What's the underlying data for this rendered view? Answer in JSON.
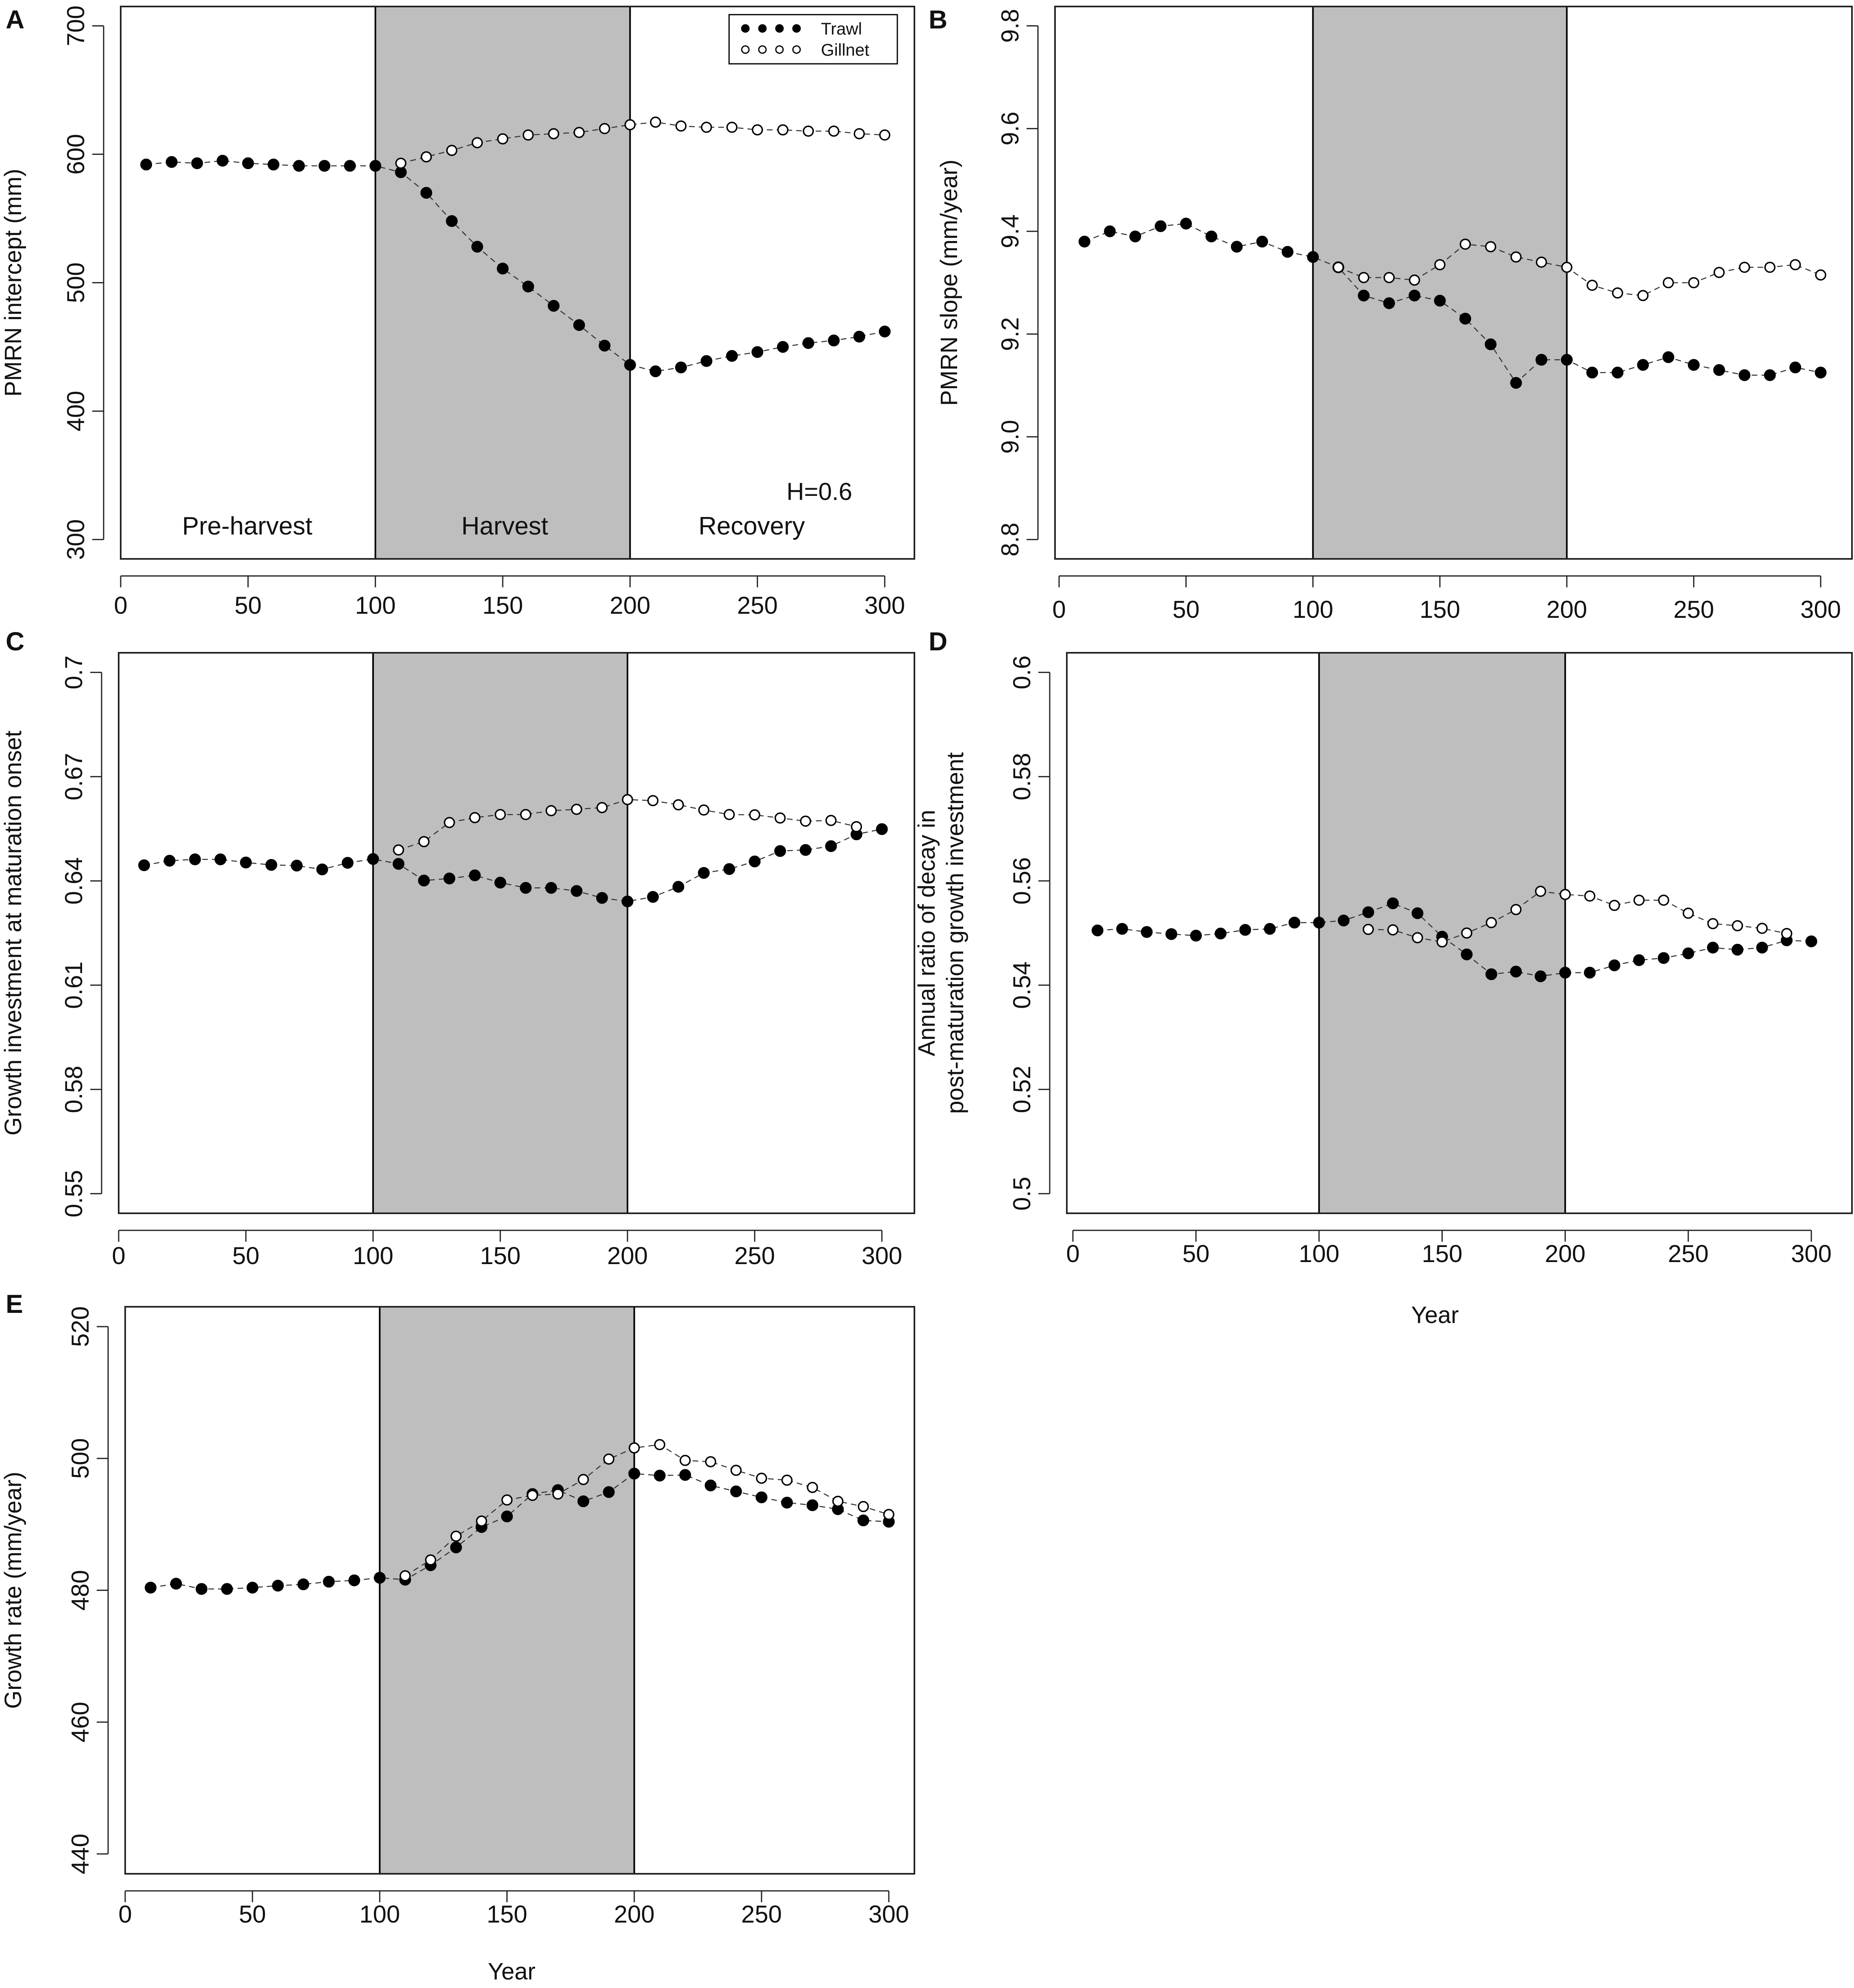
{
  "figure": {
    "shared_xlabel": "Year"
  },
  "legend": {
    "trawl_label": "Trawl",
    "gillnet_label": "Gillnet"
  },
  "colors": {
    "harvest_shade": "#bebebe",
    "marker": "#000000",
    "axis": "#222222"
  },
  "chart_data": [
    {
      "id": "A",
      "panel_label": "A",
      "type": "scatter",
      "title": "",
      "xlabel": "",
      "ylabel": "PMRN intercept (mm)",
      "xlim": [
        0,
        300
      ],
      "ylim": [
        300,
        700
      ],
      "xticks": [
        0,
        50,
        100,
        150,
        200,
        250,
        300
      ],
      "xtick_labels": [
        "0",
        "50",
        "100",
        "150",
        "200",
        "250",
        "300"
      ],
      "yticks": [
        300,
        400,
        500,
        600,
        700
      ],
      "ytick_labels": [
        "300",
        "400",
        "500",
        "600",
        "700"
      ],
      "harvest_period": [
        100,
        200
      ],
      "region_labels": [
        "Pre-harvest",
        "Harvest",
        "Recovery"
      ],
      "annotation": "H=0.6",
      "show_legend": true,
      "series": [
        {
          "name": "Trawl",
          "marker": "filled",
          "x": [
            10,
            20,
            30,
            40,
            50,
            60,
            70,
            80,
            90,
            100,
            110,
            120,
            130,
            140,
            150,
            160,
            170,
            180,
            190,
            200,
            210,
            220,
            230,
            240,
            250,
            260,
            270,
            280,
            290,
            300
          ],
          "y": [
            592,
            594,
            593,
            595,
            593,
            592,
            591,
            591,
            591,
            591,
            586,
            570,
            548,
            528,
            511,
            497,
            482,
            467,
            451,
            436,
            431,
            434,
            439,
            443,
            446,
            450,
            453,
            455,
            458,
            462
          ]
        },
        {
          "name": "Gillnet",
          "marker": "open",
          "x": [
            110,
            120,
            130,
            140,
            150,
            160,
            170,
            180,
            190,
            200,
            210,
            220,
            230,
            240,
            250,
            260,
            270,
            280,
            290,
            300
          ],
          "y": [
            593,
            598,
            603,
            609,
            612,
            615,
            616,
            617,
            620,
            623,
            625,
            622,
            621,
            621,
            619,
            619,
            618,
            618,
            616,
            615
          ]
        }
      ]
    },
    {
      "id": "B",
      "panel_label": "B",
      "type": "scatter",
      "title": "",
      "xlabel": "",
      "ylabel": "PMRN slope (mm/year)",
      "xlim": [
        0,
        300
      ],
      "ylim": [
        8.8,
        9.8
      ],
      "xticks": [
        0,
        50,
        100,
        150,
        200,
        250,
        300
      ],
      "xtick_labels": [
        "0",
        "50",
        "100",
        "150",
        "200",
        "250",
        "300"
      ],
      "yticks": [
        8.8,
        9.0,
        9.2,
        9.4,
        9.6,
        9.8
      ],
      "ytick_labels": [
        "8.8",
        "9.0",
        "9.2",
        "9.4",
        "9.6",
        "9.8"
      ],
      "harvest_period": [
        100,
        200
      ],
      "region_labels": [],
      "annotation": "",
      "show_legend": false,
      "series": [
        {
          "name": "Trawl",
          "marker": "filled",
          "x": [
            10,
            20,
            30,
            40,
            50,
            60,
            70,
            80,
            90,
            100,
            110,
            120,
            130,
            140,
            150,
            160,
            170,
            180,
            190,
            200,
            210,
            220,
            230,
            240,
            250,
            260,
            270,
            280,
            290,
            300
          ],
          "y": [
            9.38,
            9.4,
            9.39,
            9.41,
            9.415,
            9.39,
            9.37,
            9.38,
            9.36,
            9.35,
            9.33,
            9.275,
            9.26,
            9.275,
            9.265,
            9.23,
            9.18,
            9.105,
            9.15,
            9.15,
            9.125,
            9.125,
            9.14,
            9.155,
            9.14,
            9.13,
            9.12,
            9.12,
            9.135,
            9.125
          ]
        },
        {
          "name": "Gillnet",
          "marker": "open",
          "x": [
            110,
            120,
            130,
            140,
            150,
            160,
            170,
            180,
            190,
            200,
            210,
            220,
            230,
            240,
            250,
            260,
            270,
            280,
            290,
            300
          ],
          "y": [
            9.33,
            9.31,
            9.31,
            9.305,
            9.335,
            9.375,
            9.37,
            9.35,
            9.34,
            9.33,
            9.295,
            9.28,
            9.275,
            9.3,
            9.3,
            9.32,
            9.33,
            9.33,
            9.335,
            9.315
          ]
        }
      ]
    },
    {
      "id": "C",
      "panel_label": "C",
      "type": "scatter",
      "title": "",
      "xlabel": "",
      "ylabel": "Growth investment at maturation onset",
      "xlim": [
        0,
        300
      ],
      "ylim": [
        0.55,
        0.7
      ],
      "xticks": [
        0,
        50,
        100,
        150,
        200,
        250,
        300
      ],
      "xtick_labels": [
        "0",
        "50",
        "100",
        "150",
        "200",
        "250",
        "300"
      ],
      "yticks": [
        0.55,
        0.58,
        0.61,
        0.64,
        0.67,
        0.7
      ],
      "ytick_labels": [
        "0.55",
        "0.58",
        "0.61",
        "0.64",
        "0.67",
        "0.7"
      ],
      "harvest_period": [
        100,
        200
      ],
      "region_labels": [],
      "annotation": "",
      "show_legend": false,
      "series": [
        {
          "name": "Trawl",
          "marker": "filled",
          "x": [
            10,
            20,
            30,
            40,
            50,
            60,
            70,
            80,
            90,
            100,
            110,
            120,
            130,
            140,
            150,
            160,
            170,
            180,
            190,
            200,
            210,
            220,
            230,
            240,
            250,
            260,
            270,
            280,
            290,
            300
          ],
          "y": [
            0.6445,
            0.6458,
            0.6462,
            0.6462,
            0.6453,
            0.6446,
            0.6444,
            0.6433,
            0.6452,
            0.6463,
            0.6449,
            0.6401,
            0.6407,
            0.6416,
            0.6395,
            0.638,
            0.638,
            0.6371,
            0.6351,
            0.6341,
            0.6354,
            0.6383,
            0.6423,
            0.6434,
            0.6456,
            0.6486,
            0.6489,
            0.65,
            0.6534,
            0.6549
          ]
        },
        {
          "name": "Gillnet",
          "marker": "open",
          "x": [
            110,
            120,
            130,
            140,
            150,
            160,
            170,
            180,
            190,
            200,
            210,
            220,
            230,
            240,
            250,
            260,
            270,
            280,
            290
          ],
          "y": [
            0.6489,
            0.6513,
            0.6568,
            0.6582,
            0.6591,
            0.6591,
            0.6602,
            0.6606,
            0.6611,
            0.6634,
            0.6631,
            0.6619,
            0.6604,
            0.6591,
            0.659,
            0.6581,
            0.6572,
            0.6574,
            0.6556
          ]
        }
      ]
    },
    {
      "id": "D",
      "panel_label": "D",
      "type": "scatter",
      "title": "",
      "xlabel": "Year",
      "ylabel_lines": [
        "Annual ratio of decay in",
        "post-maturation growth investment"
      ],
      "xlim": [
        0,
        300
      ],
      "ylim": [
        0.5,
        0.6
      ],
      "xticks": [
        0,
        50,
        100,
        150,
        200,
        250,
        300
      ],
      "xtick_labels": [
        "0",
        "50",
        "100",
        "150",
        "200",
        "250",
        "300"
      ],
      "yticks": [
        0.5,
        0.52,
        0.54,
        0.56,
        0.58,
        0.6
      ],
      "ytick_labels": [
        "0.5",
        "0.52",
        "0.54",
        "0.56",
        "0.58",
        "0.6"
      ],
      "harvest_period": [
        100,
        200
      ],
      "region_labels": [],
      "annotation": "",
      "show_legend": false,
      "series": [
        {
          "name": "Trawl",
          "marker": "filled",
          "x": [
            10,
            20,
            30,
            40,
            50,
            60,
            70,
            80,
            90,
            100,
            110,
            120,
            130,
            140,
            150,
            160,
            170,
            180,
            190,
            200,
            210,
            220,
            230,
            240,
            250,
            260,
            270,
            280,
            290,
            300
          ],
          "y": [
            0.5505,
            0.5508,
            0.5502,
            0.5498,
            0.5495,
            0.5499,
            0.5506,
            0.5508,
            0.552,
            0.552,
            0.5524,
            0.554,
            0.5557,
            0.5538,
            0.5493,
            0.5459,
            0.5421,
            0.5426,
            0.5417,
            0.5424,
            0.5424,
            0.5438,
            0.5448,
            0.5452,
            0.5461,
            0.5472,
            0.5468,
            0.5472,
            0.5486,
            0.5484
          ]
        },
        {
          "name": "Gillnet",
          "marker": "open",
          "x": [
            120,
            130,
            140,
            150,
            160,
            170,
            180,
            190,
            200,
            210,
            220,
            230,
            240,
            250,
            260,
            270,
            280,
            290
          ],
          "y": [
            0.5507,
            0.5506,
            0.5491,
            0.5483,
            0.55,
            0.552,
            0.5545,
            0.558,
            0.5574,
            0.5571,
            0.5553,
            0.5563,
            0.5563,
            0.5538,
            0.5518,
            0.5514,
            0.5509,
            0.5499
          ]
        }
      ]
    },
    {
      "id": "E",
      "panel_label": "E",
      "type": "scatter",
      "title": "",
      "xlabel": "Year",
      "ylabel": "Growth rate (mm/year)",
      "xlim": [
        0,
        300
      ],
      "ylim": [
        440,
        520
      ],
      "xticks": [
        0,
        50,
        100,
        150,
        200,
        250,
        300
      ],
      "xtick_labels": [
        "0",
        "50",
        "100",
        "150",
        "200",
        "250",
        "300"
      ],
      "yticks": [
        440,
        460,
        480,
        500,
        520
      ],
      "ytick_labels": [
        "440",
        "460",
        "480",
        "500",
        "520"
      ],
      "harvest_period": [
        100,
        200
      ],
      "region_labels": [],
      "annotation": "",
      "show_legend": false,
      "series": [
        {
          "name": "Trawl",
          "marker": "filled",
          "x": [
            10,
            20,
            30,
            40,
            50,
            60,
            70,
            80,
            90,
            100,
            110,
            120,
            130,
            140,
            150,
            160,
            170,
            180,
            190,
            200,
            210,
            220,
            230,
            240,
            250,
            260,
            270,
            280,
            290,
            300
          ],
          "y": [
            480.4,
            481.0,
            480.2,
            480.2,
            480.4,
            480.7,
            480.9,
            481.3,
            481.5,
            481.9,
            481.6,
            483.8,
            486.5,
            489.6,
            491.2,
            494.6,
            495.2,
            493.5,
            494.9,
            497.7,
            497.4,
            497.5,
            495.9,
            495.0,
            494.1,
            493.3,
            492.9,
            492.3,
            490.6,
            490.4
          ]
        },
        {
          "name": "Gillnet",
          "marker": "open",
          "x": [
            110,
            120,
            130,
            140,
            150,
            160,
            170,
            180,
            190,
            200,
            210,
            220,
            230,
            240,
            250,
            260,
            270,
            280,
            290,
            300
          ],
          "y": [
            482.2,
            484.6,
            488.2,
            490.5,
            493.7,
            494.4,
            494.6,
            496.8,
            499.9,
            501.6,
            502.1,
            499.7,
            499.5,
            498.2,
            497.0,
            496.7,
            495.6,
            493.5,
            492.7,
            491.5
          ]
        }
      ]
    }
  ]
}
